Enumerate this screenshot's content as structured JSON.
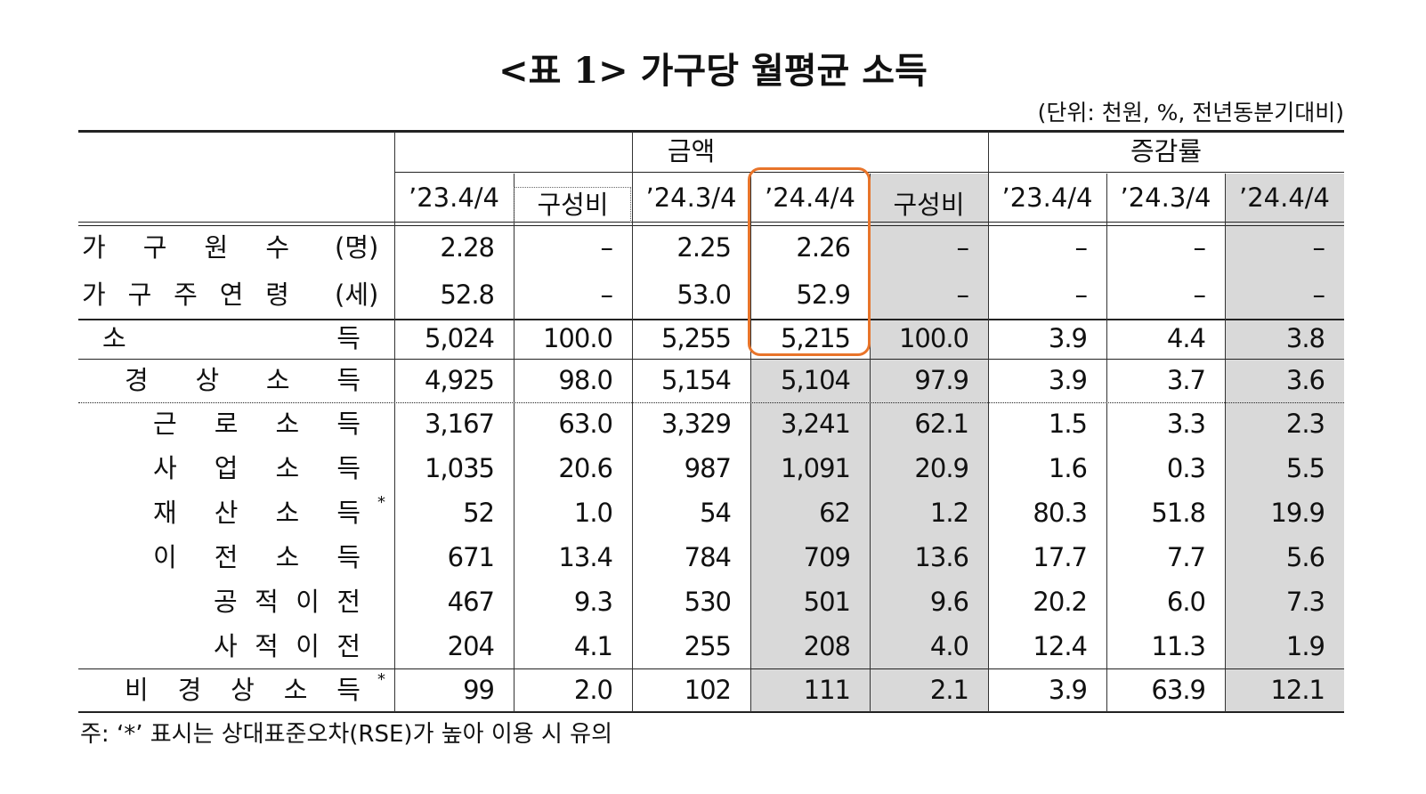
{
  "title": "<표 1> 가구당 월평균 소득",
  "unit_note": "(단위: 천원, %, 전년동분기대비)",
  "table": {
    "group_headers": [
      "금액",
      "증감률"
    ],
    "column_headers": [
      "’23.4/4",
      "구성비",
      "’24.3/4",
      "’24.4/4",
      "구성비",
      "’23.4/4",
      "’24.3/4",
      "’24.4/4"
    ],
    "rows": [
      {
        "label": "가 구 원 수",
        "unit": "(명)",
        "cells": [
          "2.28",
          "–",
          "2.25",
          "2.26",
          "–",
          "–",
          "–",
          "–"
        ]
      },
      {
        "label": "가 구 주 연 령",
        "unit": "(세)",
        "cells": [
          "52.8",
          "–",
          "53.0",
          "52.9",
          "–",
          "–",
          "–",
          "–"
        ]
      },
      {
        "label": "소 득",
        "cells": [
          "5,024",
          "100.0",
          "5,255",
          "5,215",
          "100.0",
          "3.9",
          "4.4",
          "3.8"
        ]
      },
      {
        "label": "경 상 소 득",
        "cells": [
          "4,925",
          "98.0",
          "5,154",
          "5,104",
          "97.9",
          "3.9",
          "3.7",
          "3.6"
        ]
      },
      {
        "label": "근 로 소 득",
        "cells": [
          "3,167",
          "63.0",
          "3,329",
          "3,241",
          "62.1",
          "1.5",
          "3.3",
          "2.3"
        ]
      },
      {
        "label": "사 업 소 득",
        "cells": [
          "1,035",
          "20.6",
          "987",
          "1,091",
          "20.9",
          "1.6",
          "0.3",
          "5.5"
        ]
      },
      {
        "label": "재 산 소 득",
        "mark": "*",
        "cells": [
          "52",
          "1.0",
          "54",
          "62",
          "1.2",
          "80.3",
          "51.8",
          "19.9"
        ]
      },
      {
        "label": "이 전 소 득",
        "cells": [
          "671",
          "13.4",
          "784",
          "709",
          "13.6",
          "17.7",
          "7.7",
          "5.6"
        ]
      },
      {
        "label": "공 적 이 전",
        "cells": [
          "467",
          "9.3",
          "530",
          "501",
          "9.6",
          "20.2",
          "6.0",
          "7.3"
        ]
      },
      {
        "label": "사 적 이 전",
        "cells": [
          "204",
          "4.1",
          "255",
          "208",
          "4.0",
          "12.4",
          "11.3",
          "1.9"
        ]
      },
      {
        "label": "비 경 상 소 득",
        "mark": "*",
        "cells": [
          "99",
          "2.0",
          "102",
          "111",
          "2.1",
          "3.9",
          "63.9",
          "12.1"
        ]
      }
    ]
  },
  "footnote": "주: ‘*’ 표시는 상대표준오차(RSE)가 높아 이용 시 유의"
}
